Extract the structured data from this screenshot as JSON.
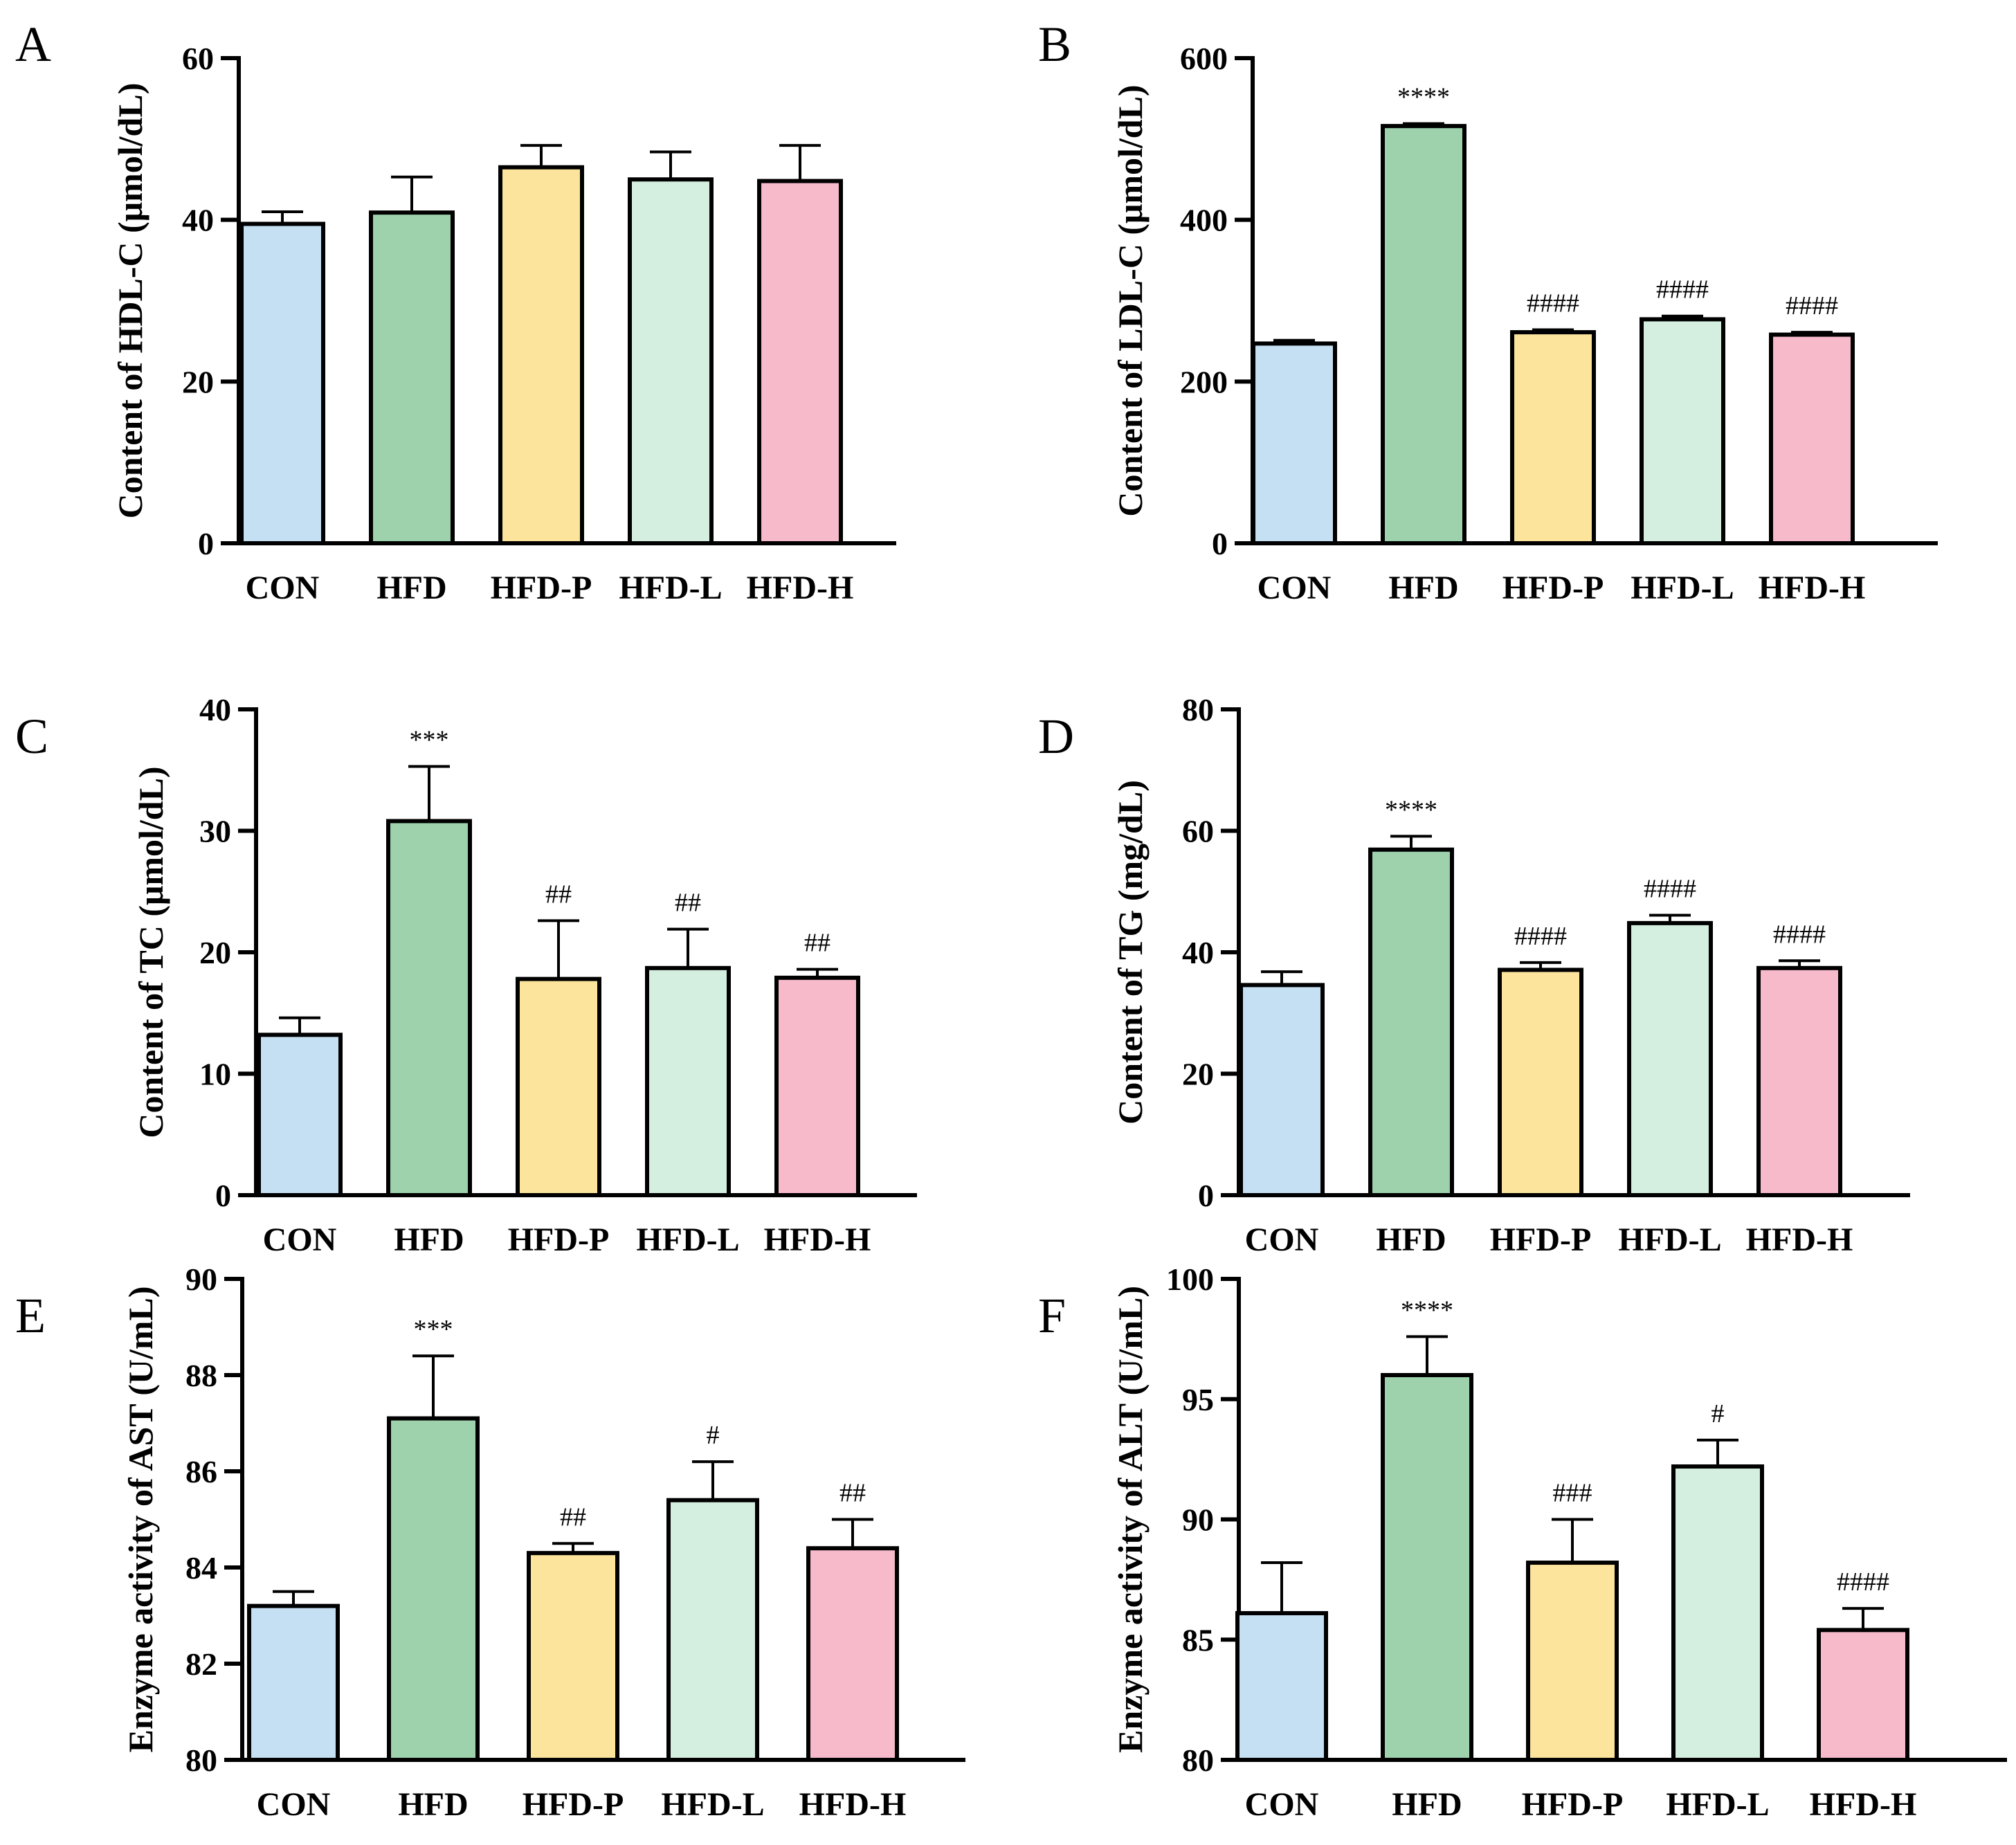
{
  "chart_data": [
    {
      "panel": "A",
      "type": "bar",
      "categories": [
        "CON",
        "HFD",
        "HFD-P",
        "HFD-L",
        "HFD-H"
      ],
      "values": [
        39.5,
        40.9,
        46.5,
        45.0,
        44.8
      ],
      "errors": [
        1.5,
        4.4,
        2.7,
        3.4,
        4.4
      ],
      "significance": [
        "",
        "",
        "",
        "",
        ""
      ],
      "colors": [
        "#c5dff3",
        "#9dd2ad",
        "#fde49d",
        "#d4eedf",
        "#f6bacb"
      ],
      "ylabel": "Content of HDL-C (μmol/dL)",
      "ylim": [
        0,
        60
      ],
      "yticks": [
        0,
        20,
        40,
        60
      ]
    },
    {
      "panel": "B",
      "type": "bar",
      "categories": [
        "CON",
        "HFD",
        "HFD-P",
        "HFD-L",
        "HFD-H"
      ],
      "values": [
        247,
        516,
        261,
        277,
        258
      ],
      "errors": [
        4,
        3,
        3,
        4,
        3
      ],
      "significance": [
        "",
        "****",
        "####",
        "####",
        "####"
      ],
      "colors": [
        "#c5dff3",
        "#9dd2ad",
        "#fde49d",
        "#d4eedf",
        "#f6bacb"
      ],
      "ylabel": "Content of LDL-C (μmol/dL)",
      "ylim": [
        0,
        600
      ],
      "yticks": [
        0,
        200,
        400,
        600
      ]
    },
    {
      "panel": "C",
      "type": "bar",
      "categories": [
        "CON",
        "HFD",
        "HFD-P",
        "HFD-L",
        "HFD-H"
      ],
      "values": [
        13.2,
        30.8,
        17.8,
        18.7,
        17.9
      ],
      "errors": [
        1.4,
        4.5,
        4.8,
        3.2,
        0.7
      ],
      "significance": [
        "",
        "***",
        "##",
        "##",
        "##"
      ],
      "colors": [
        "#c5dff3",
        "#9dd2ad",
        "#fde49d",
        "#d4eedf",
        "#f6bacb"
      ],
      "ylabel": "Content of TC (μmol/dL)",
      "ylim": [
        0,
        40
      ],
      "yticks": [
        0,
        10,
        20,
        30,
        40
      ]
    },
    {
      "panel": "D",
      "type": "bar",
      "categories": [
        "CON",
        "HFD",
        "HFD-P",
        "HFD-L",
        "HFD-H"
      ],
      "values": [
        34.6,
        56.9,
        37.1,
        44.8,
        37.4
      ],
      "errors": [
        2.2,
        2.2,
        1.2,
        1.3,
        1.2
      ],
      "significance": [
        "",
        "****",
        "####",
        "####",
        "####"
      ],
      "colors": [
        "#c5dff3",
        "#9dd2ad",
        "#fde49d",
        "#d4eedf",
        "#f6bacb"
      ],
      "ylabel": "Content of TG (mg/dL)",
      "ylim": [
        0,
        80
      ],
      "yticks": [
        0,
        20,
        40,
        60,
        80
      ]
    },
    {
      "panel": "E",
      "type": "bar",
      "categories": [
        "CON",
        "HFD",
        "HFD-P",
        "HFD-L",
        "HFD-H"
      ],
      "values": [
        83.2,
        87.1,
        84.3,
        85.4,
        84.4
      ],
      "errors": [
        0.3,
        1.3,
        0.2,
        0.8,
        0.6
      ],
      "significance": [
        "",
        "***",
        "##",
        "#",
        "##"
      ],
      "colors": [
        "#c5dff3",
        "#9dd2ad",
        "#fde49d",
        "#d4eedf",
        "#f6bacb"
      ],
      "ylabel": "Enzyme activity of AST (U/mL)",
      "ylim": [
        80,
        90
      ],
      "yticks": [
        80,
        82,
        84,
        86,
        88,
        90
      ]
    },
    {
      "panel": "F",
      "type": "bar",
      "categories": [
        "CON",
        "HFD",
        "HFD-P",
        "HFD-L",
        "HFD-H"
      ],
      "values": [
        86.1,
        96.0,
        88.2,
        92.2,
        85.4
      ],
      "errors": [
        2.1,
        1.6,
        1.8,
        1.1,
        0.9
      ],
      "significance": [
        "",
        "****",
        "###",
        "#",
        "####"
      ],
      "colors": [
        "#c5dff3",
        "#9dd2ad",
        "#fde49d",
        "#d4eedf",
        "#f6bacb"
      ],
      "ylabel": "Enzyme activity of ALT (U/mL)",
      "ylim": [
        80,
        100
      ],
      "yticks": [
        80,
        85,
        90,
        95,
        100
      ]
    }
  ]
}
